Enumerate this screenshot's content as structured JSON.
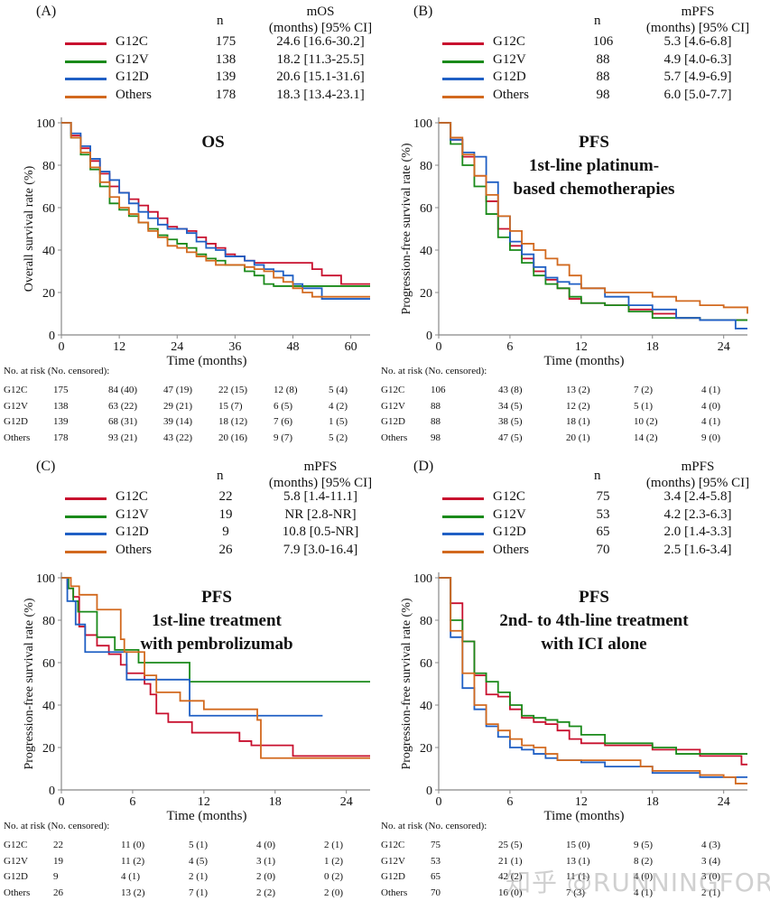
{
  "colors": {
    "G12C": "#c8102e",
    "G12V": "#1a8a1a",
    "G12D": "#1f5fc4",
    "Others": "#d2691e",
    "axis": "#888888"
  },
  "legend_header": {
    "n": "n",
    "ci": "(months) [95% CI]"
  },
  "risk_title": "No. at risk (No. censored):",
  "xlabel": "Time (months)",
  "watermark": "知乎 @RUNNINGFORGOOD",
  "chart_data": [
    {
      "id": "A",
      "type": "line",
      "panel_label": "(A)",
      "title_lines": [
        "OS"
      ],
      "ylabel": "Overall survival rate (%)",
      "xlabel": "Time (months)",
      "metric": "mOS",
      "xlim": [
        0,
        64
      ],
      "ylim": [
        0,
        100
      ],
      "xticks": [
        0,
        12,
        24,
        36,
        48,
        60
      ],
      "yticks": [
        0,
        20,
        40,
        60,
        80,
        100
      ],
      "groups": [
        {
          "name": "G12C",
          "n": "175",
          "median": "24.6 [16.6-30.2]",
          "risk": [
            "175",
            "84 (40)",
            "47 (19)",
            "22 (15)",
            "12 (8)",
            "5 (4)"
          ],
          "x": [
            0,
            2,
            4,
            6,
            8,
            10,
            12,
            14,
            16,
            18,
            20,
            22,
            24,
            26,
            28,
            30,
            32,
            34,
            36,
            38,
            40,
            42,
            44,
            46,
            48,
            50,
            52,
            54,
            56,
            58,
            60,
            64
          ],
          "y": [
            100,
            94,
            88,
            82,
            76,
            70,
            67,
            64,
            61,
            58,
            55,
            51,
            50,
            49,
            46,
            43,
            41,
            38,
            37,
            35,
            34,
            34,
            34,
            34,
            34,
            34,
            31,
            28,
            28,
            24,
            24,
            24
          ]
        },
        {
          "name": "G12V",
          "n": "138",
          "median": "18.2 [11.3-25.5]",
          "risk": [
            "138",
            "63 (22)",
            "29 (21)",
            "15 (7)",
            "6 (5)",
            "4 (2)"
          ],
          "x": [
            0,
            2,
            4,
            6,
            8,
            10,
            12,
            14,
            16,
            18,
            20,
            22,
            24,
            26,
            28,
            30,
            32,
            34,
            36,
            38,
            40,
            42,
            44,
            46,
            48,
            50,
            52,
            54,
            56,
            58,
            60,
            64
          ],
          "y": [
            100,
            93,
            85,
            78,
            70,
            62,
            59,
            56,
            53,
            50,
            47,
            45,
            43,
            41,
            38,
            36,
            35,
            33,
            33,
            30,
            28,
            24,
            23,
            23,
            23,
            23,
            23,
            23,
            23,
            23,
            23,
            23
          ]
        },
        {
          "name": "G12D",
          "n": "139",
          "median": "20.6 [15.1-31.6]",
          "risk": [
            "139",
            "68 (31)",
            "39 (14)",
            "18 (12)",
            "7 (6)",
            "1 (5)"
          ],
          "x": [
            0,
            2,
            4,
            6,
            8,
            10,
            12,
            14,
            16,
            18,
            20,
            22,
            24,
            26,
            28,
            30,
            32,
            34,
            36,
            38,
            40,
            42,
            44,
            46,
            48,
            50,
            52,
            54,
            56,
            58,
            60,
            64
          ],
          "y": [
            100,
            95,
            89,
            83,
            77,
            73,
            67,
            62,
            58,
            55,
            52,
            50,
            50,
            48,
            44,
            41,
            40,
            37,
            37,
            35,
            33,
            31,
            30,
            28,
            24,
            22,
            22,
            17,
            17,
            17,
            17,
            17
          ]
        },
        {
          "name": "Others",
          "n": "178",
          "median": "18.3 [13.4-23.1]",
          "risk": [
            "178",
            "93 (21)",
            "43 (22)",
            "20 (16)",
            "9 (7)",
            "5 (2)"
          ],
          "x": [
            0,
            2,
            4,
            6,
            8,
            10,
            12,
            14,
            16,
            18,
            20,
            22,
            24,
            26,
            28,
            30,
            32,
            34,
            36,
            38,
            40,
            42,
            44,
            46,
            48,
            50,
            52,
            54,
            56,
            58,
            60,
            64
          ],
          "y": [
            100,
            93,
            86,
            79,
            72,
            65,
            60,
            57,
            53,
            49,
            46,
            42,
            41,
            39,
            37,
            35,
            33,
            33,
            33,
            32,
            31,
            30,
            27,
            25,
            22,
            20,
            18,
            18,
            18,
            18,
            18,
            18
          ]
        }
      ]
    },
    {
      "id": "B",
      "type": "line",
      "panel_label": "(B)",
      "title_lines": [
        "PFS",
        "1st-line platinum-",
        "based chemotherapies"
      ],
      "ylabel": "Progression-free survival rate (%)",
      "xlabel": "Time (months)",
      "metric": "mPFS",
      "xlim": [
        0,
        26
      ],
      "ylim": [
        0,
        100
      ],
      "xticks": [
        0,
        6,
        12,
        18,
        24
      ],
      "yticks": [
        0,
        20,
        40,
        60,
        80,
        100
      ],
      "groups": [
        {
          "name": "G12C",
          "n": "106",
          "median": "5.3 [4.6-6.8]",
          "risk": [
            "106",
            "43 (8)",
            "13 (2)",
            "7 (2)",
            "4 (1)"
          ],
          "x": [
            0,
            1,
            2,
            3,
            4,
            5,
            6,
            7,
            8,
            9,
            10,
            11,
            12,
            14,
            16,
            18,
            20,
            22,
            24,
            26
          ],
          "y": [
            100,
            92,
            84,
            75,
            63,
            50,
            42,
            36,
            30,
            26,
            22,
            17,
            15,
            14,
            12,
            10,
            8,
            7,
            7,
            7
          ]
        },
        {
          "name": "G12V",
          "n": "88",
          "median": "4.9 [4.0-6.3]",
          "risk": [
            "88",
            "34 (5)",
            "12 (2)",
            "5 (1)",
            "4 (0)"
          ],
          "x": [
            0,
            1,
            2,
            3,
            4,
            5,
            6,
            7,
            8,
            9,
            10,
            11,
            12,
            14,
            16,
            18,
            20,
            22,
            24,
            26
          ],
          "y": [
            100,
            90,
            80,
            70,
            57,
            46,
            40,
            34,
            28,
            24,
            22,
            18,
            15,
            14,
            11,
            8,
            8,
            7,
            7,
            7
          ]
        },
        {
          "name": "G12D",
          "n": "88",
          "median": "5.7 [4.9-6.9]",
          "risk": [
            "88",
            "38 (5)",
            "18 (1)",
            "10 (2)",
            "4 (1)"
          ],
          "x": [
            0,
            1,
            2,
            3,
            4,
            5,
            6,
            7,
            8,
            9,
            10,
            11,
            12,
            14,
            16,
            18,
            20,
            22,
            24,
            25,
            26
          ],
          "y": [
            100,
            92,
            86,
            84,
            72,
            56,
            44,
            38,
            32,
            27,
            25,
            24,
            22,
            18,
            14,
            12,
            8,
            7,
            7,
            3,
            3
          ]
        },
        {
          "name": "Others",
          "n": "98",
          "median": "6.0 [5.0-7.7]",
          "risk": [
            "98",
            "47 (5)",
            "20 (1)",
            "14 (2)",
            "9 (0)"
          ],
          "x": [
            0,
            1,
            2,
            3,
            4,
            5,
            6,
            7,
            8,
            9,
            10,
            11,
            12,
            14,
            16,
            18,
            20,
            22,
            24,
            26
          ],
          "y": [
            100,
            93,
            85,
            75,
            66,
            56,
            49,
            43,
            40,
            36,
            33,
            28,
            22,
            20,
            20,
            18,
            16,
            14,
            13,
            10
          ]
        }
      ]
    },
    {
      "id": "C",
      "type": "line",
      "panel_label": "(C)",
      "title_lines": [
        "PFS",
        "1st-line treatment",
        "with pembrolizumab"
      ],
      "ylabel": "Progression-free survival rate (%)",
      "xlabel": "Time (months)",
      "metric": "mPFS",
      "xlim": [
        0,
        26
      ],
      "ylim": [
        0,
        100
      ],
      "xticks": [
        0,
        6,
        12,
        18,
        24
      ],
      "yticks": [
        0,
        20,
        40,
        60,
        80,
        100
      ],
      "groups": [
        {
          "name": "G12C",
          "n": "22",
          "median": "5.8 [1.4-11.1]",
          "risk": [
            "22",
            "11 (0)",
            "5 (1)",
            "4 (0)",
            "2 (1)"
          ],
          "x": [
            0,
            0.5,
            1,
            1.5,
            2,
            3,
            4,
            5,
            5.5,
            7,
            7.5,
            8,
            9,
            11,
            15,
            16,
            19.5,
            26
          ],
          "y": [
            100,
            95,
            91,
            77,
            73,
            68,
            64,
            59,
            55,
            50,
            45,
            36,
            32,
            27,
            23,
            21,
            16,
            16
          ]
        },
        {
          "name": "G12V",
          "n": "19",
          "median": "NR [2.8-NR]",
          "risk": [
            "19",
            "11 (2)",
            "4 (5)",
            "3 (1)",
            "1 (2)"
          ],
          "x": [
            0,
            0.6,
            1,
            1.4,
            3,
            4.5,
            6.5,
            10.5,
            10.8,
            26
          ],
          "y": [
            100,
            95,
            89,
            84,
            72,
            66,
            60,
            60,
            51,
            51
          ]
        },
        {
          "name": "G12D",
          "n": "9",
          "median": "10.8 [0.5-NR]",
          "risk": [
            "9",
            "4 (1)",
            "2 (1)",
            "2 (0)",
            "0 (2)"
          ],
          "x": [
            0,
            0.5,
            1.2,
            2,
            5.5,
            10.8,
            22
          ],
          "y": [
            100,
            89,
            78,
            65,
            52,
            35,
            35
          ]
        },
        {
          "name": "Others",
          "n": "26",
          "median": "7.9 [3.0-16.4]",
          "risk": [
            "26",
            "13 (2)",
            "7 (1)",
            "2 (2)",
            "2 (0)"
          ],
          "x": [
            0,
            0.8,
            1.5,
            3,
            5,
            5.3,
            7,
            8,
            10,
            12,
            16.5,
            16.8,
            26
          ],
          "y": [
            100,
            96,
            92,
            85,
            71,
            65,
            54,
            46,
            42,
            38,
            33,
            15,
            15
          ]
        }
      ]
    },
    {
      "id": "D",
      "type": "line",
      "panel_label": "(D)",
      "title_lines": [
        "PFS",
        "2nd- to 4th-line treatment",
        "with ICI alone"
      ],
      "ylabel": "Progression-free survival rate (%)",
      "xlabel": "Time (months)",
      "metric": "mPFS",
      "xlim": [
        0,
        26
      ],
      "ylim": [
        0,
        100
      ],
      "xticks": [
        0,
        6,
        12,
        18,
        24
      ],
      "yticks": [
        0,
        20,
        40,
        60,
        80,
        100
      ],
      "groups": [
        {
          "name": "G12C",
          "n": "75",
          "median": "3.4 [2.4-5.8]",
          "risk": [
            "75",
            "25 (5)",
            "15 (0)",
            "9 (5)",
            "4 (3)"
          ],
          "x": [
            0,
            1,
            2,
            3,
            4,
            5,
            6,
            7,
            8,
            9,
            10,
            11,
            12,
            14,
            16,
            18,
            20,
            22,
            24,
            25.5,
            26
          ],
          "y": [
            100,
            88,
            70,
            54,
            45,
            44,
            38,
            34,
            32,
            31,
            28,
            24,
            22,
            21,
            21,
            19,
            19,
            16,
            16,
            12,
            12
          ]
        },
        {
          "name": "G12V",
          "n": "53",
          "median": "4.2 [2.3-6.3]",
          "risk": [
            "53",
            "21 (1)",
            "13 (1)",
            "8 (2)",
            "3 (4)"
          ],
          "x": [
            0,
            1,
            2,
            3,
            4,
            5,
            6,
            7,
            8,
            9,
            10,
            11,
            12,
            14,
            16,
            18,
            20,
            22,
            24,
            26
          ],
          "y": [
            100,
            80,
            70,
            55,
            51,
            46,
            40,
            35,
            34,
            33,
            32,
            30,
            26,
            22,
            22,
            20,
            17,
            17,
            17,
            17
          ]
        },
        {
          "name": "G12D",
          "n": "65",
          "median": "2.0 [1.4-3.3]",
          "risk": [
            "65",
            "42 (2)",
            "11 (1)",
            "4 (0)",
            "3 (0)"
          ],
          "x": [
            0,
            1,
            2,
            3,
            4,
            5,
            6,
            7,
            8,
            9,
            10,
            12,
            14,
            16,
            18,
            20,
            22,
            24,
            26
          ],
          "y": [
            100,
            72,
            48,
            38,
            30,
            25,
            20,
            19,
            17,
            15,
            14,
            13,
            11,
            11,
            8,
            8,
            6,
            6,
            6
          ]
        },
        {
          "name": "Others",
          "n": "70",
          "median": "2.5 [1.6-3.4]",
          "risk": [
            "70",
            "16 (0)",
            "7 (3)",
            "4 (1)",
            "2 (1)"
          ],
          "x": [
            0,
            1,
            2,
            3,
            4,
            5,
            6,
            7,
            8,
            9,
            10,
            12,
            14,
            16,
            17,
            18,
            20,
            22,
            24,
            25,
            26
          ],
          "y": [
            100,
            75,
            55,
            40,
            31,
            28,
            24,
            21,
            20,
            17,
            14,
            14,
            14,
            14,
            11,
            9,
            9,
            7,
            6,
            3,
            3
          ]
        }
      ]
    }
  ]
}
